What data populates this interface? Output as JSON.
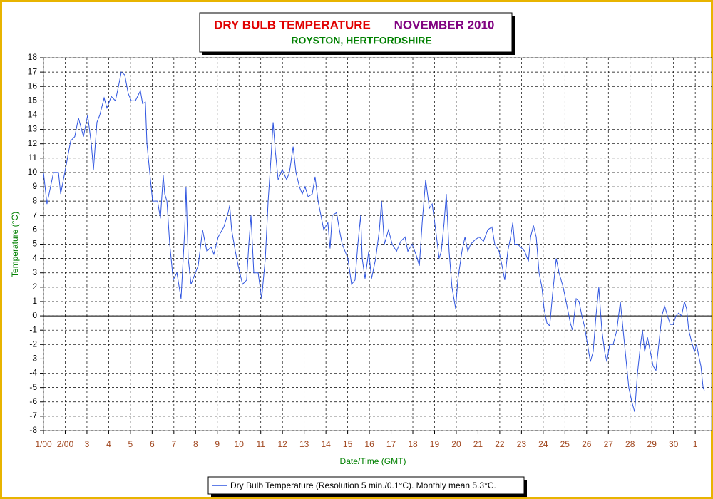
{
  "chart_data": {
    "type": "line",
    "title": "DRY BULB TEMPERATURE",
    "title_date": "NOVEMBER 2010",
    "subtitle": "ROYSTON, HERTFORDSHIRE",
    "y_label": "Temperature (°C)",
    "x_label": "Date/Time (GMT)",
    "ylim": [
      -8,
      18
    ],
    "yticks": [
      -8,
      -7,
      -6,
      -5,
      -4,
      -3,
      -2,
      -1,
      0,
      1,
      2,
      3,
      4,
      5,
      6,
      7,
      8,
      9,
      10,
      11,
      12,
      13,
      14,
      15,
      16,
      17,
      18
    ],
    "xlim": [
      0,
      30.75
    ],
    "xticks": [
      {
        "value": 0,
        "label": "1/00"
      },
      {
        "value": 1,
        "label": "2/00"
      },
      {
        "value": 2,
        "label": "3"
      },
      {
        "value": 3,
        "label": "4"
      },
      {
        "value": 4,
        "label": "5"
      },
      {
        "value": 5,
        "label": "6"
      },
      {
        "value": 6,
        "label": "7"
      },
      {
        "value": 7,
        "label": "8"
      },
      {
        "value": 8,
        "label": "9"
      },
      {
        "value": 9,
        "label": "10"
      },
      {
        "value": 10,
        "label": "11"
      },
      {
        "value": 11,
        "label": "12"
      },
      {
        "value": 12,
        "label": "13"
      },
      {
        "value": 13,
        "label": "14"
      },
      {
        "value": 14,
        "label": "15"
      },
      {
        "value": 15,
        "label": "16"
      },
      {
        "value": 16,
        "label": "17"
      },
      {
        "value": 17,
        "label": "18"
      },
      {
        "value": 18,
        "label": "19"
      },
      {
        "value": 19,
        "label": "20"
      },
      {
        "value": 20,
        "label": "21"
      },
      {
        "value": 21,
        "label": "22"
      },
      {
        "value": 22,
        "label": "23"
      },
      {
        "value": 23,
        "label": "24"
      },
      {
        "value": 24,
        "label": "25"
      },
      {
        "value": 25,
        "label": "26"
      },
      {
        "value": 26,
        "label": "27"
      },
      {
        "value": 27,
        "label": "28"
      },
      {
        "value": 28,
        "label": "29"
      },
      {
        "value": 29,
        "label": "30"
      },
      {
        "value": 30,
        "label": "1"
      }
    ],
    "grid": true,
    "x": [
      0,
      0.16,
      0.46,
      0.69,
      0.79,
      0.98,
      1.25,
      1.44,
      1.61,
      1.84,
      2.03,
      2.2,
      2.3,
      2.46,
      2.59,
      2.79,
      2.92,
      3.12,
      3.31,
      3.45,
      3.58,
      3.74,
      3.9,
      4.04,
      4.23,
      4.46,
      4.56,
      4.69,
      4.76,
      4.89,
      5.02,
      5.25,
      5.38,
      5.51,
      5.58,
      5.68,
      5.81,
      5.97,
      6.14,
      6.33,
      6.5,
      6.56,
      6.66,
      6.79,
      6.99,
      7.12,
      7.32,
      7.52,
      7.71,
      7.84,
      8.04,
      8.3,
      8.5,
      8.57,
      8.66,
      8.83,
      8.96,
      9.16,
      9.35,
      9.45,
      9.55,
      9.68,
      9.88,
      10.04,
      10.21,
      10.34,
      10.47,
      10.57,
      10.67,
      10.8,
      10.99,
      11.19,
      11.32,
      11.49,
      11.62,
      11.78,
      11.91,
      12.04,
      12.18,
      12.37,
      12.5,
      12.64,
      12.77,
      12.9,
      13.09,
      13.19,
      13.29,
      13.49,
      13.62,
      13.75,
      14.01,
      14.18,
      14.34,
      14.47,
      14.6,
      14.67,
      14.8,
      14.97,
      15.1,
      15.29,
      15.46,
      15.56,
      15.69,
      15.88,
      16.05,
      16.25,
      16.44,
      16.64,
      16.77,
      16.97,
      17.16,
      17.3,
      17.43,
      17.59,
      17.76,
      17.89,
      18.05,
      18.21,
      18.31,
      18.44,
      18.54,
      18.67,
      18.8,
      18.97,
      19.07,
      19.26,
      19.4,
      19.53,
      19.66,
      19.86,
      20.05,
      20.25,
      20.45,
      20.64,
      20.77,
      20.97,
      21.17,
      21.23,
      21.37,
      21.5,
      21.6,
      21.69,
      21.82,
      21.96,
      22.15,
      22.32,
      22.42,
      22.55,
      22.68,
      22.81,
      22.94,
      23.04,
      23.17,
      23.3,
      23.43,
      23.6,
      23.73,
      23.92,
      24.12,
      24.25,
      24.35,
      24.52,
      24.65,
      24.78,
      24.91,
      25.04,
      25.17,
      25.3,
      25.43,
      25.56,
      25.7,
      25.83,
      25.93,
      26.06,
      26.22,
      26.39,
      26.55,
      26.68,
      26.81,
      26.94,
      27.08,
      27.21,
      27.34,
      27.48,
      27.57,
      27.67,
      27.8,
      27.93,
      28.06,
      28.19,
      28.32,
      28.46,
      28.59,
      28.72,
      28.85,
      28.98,
      29.11,
      29.24,
      29.37,
      29.5,
      29.6,
      29.7,
      29.83,
      29.96,
      30.06,
      30.16,
      30.26,
      30.36,
      30.42
    ],
    "series": [
      {
        "name": "Dry Bulb Temperature (Resolution 5 min./0.1°C). Monthly mean 5.3°C.",
        "color": "#2f55e0",
        "values": [
          10,
          7.8,
          10,
          10,
          8.5,
          10,
          12.2,
          12.5,
          13.8,
          12.5,
          14,
          12,
          10.2,
          13.5,
          14,
          15.2,
          14.5,
          15.3,
          15,
          16,
          17,
          16.8,
          15.5,
          15,
          15,
          15.7,
          14.8,
          14.9,
          12,
          10,
          8,
          8,
          6.8,
          9.8,
          8.5,
          8,
          5,
          2.5,
          3,
          1.2,
          6,
          9,
          4,
          2.2,
          3,
          3.5,
          6,
          4.5,
          4.8,
          4.3,
          5.5,
          6.2,
          7.2,
          7.7,
          6,
          4.5,
          3.5,
          2.2,
          2.5,
          5,
          7,
          3,
          3,
          1.2,
          4,
          8,
          11,
          13.5,
          11.5,
          9.5,
          10.2,
          9.5,
          10,
          11.8,
          10,
          9,
          8.5,
          9,
          8.3,
          8.5,
          9.7,
          8,
          7,
          6,
          6.5,
          4.7,
          7,
          7.2,
          6,
          5,
          4,
          2.2,
          2.5,
          5,
          7,
          4,
          2.6,
          4.5,
          2.6,
          4,
          6,
          8,
          5,
          6,
          5,
          4.5,
          5.2,
          5.5,
          4.5,
          5,
          4.2,
          3.5,
          6.5,
          9.5,
          7.5,
          7.8,
          6,
          4,
          4.5,
          6.5,
          8.5,
          4.5,
          2,
          0.5,
          2.5,
          4.5,
          5.5,
          4.5,
          5,
          5.3,
          5.5,
          5.2,
          6,
          6.2,
          5,
          4.5,
          3,
          2.5,
          4.5,
          5.5,
          6.5,
          5,
          5,
          4.8,
          4.5,
          3.8,
          5.5,
          6.3,
          5.5,
          3,
          2,
          0.5,
          -0.5,
          -0.7,
          1.5,
          4,
          3,
          2,
          0.5,
          -0.5,
          -1,
          1.2,
          1,
          0,
          -0.8,
          -2,
          -3.2,
          -2.5,
          0,
          2,
          -1,
          -2.5,
          -3.2,
          -2,
          -2,
          -1,
          1,
          -1,
          -3,
          -5,
          -6,
          -6.7,
          -4,
          -2,
          -1,
          -2.5,
          -1.5,
          -2.5,
          -3.5,
          -3.8,
          -2,
          0,
          0.7,
          0,
          -0.6,
          -0.6,
          0,
          0.2,
          0,
          1,
          0.5,
          -1,
          -1.8,
          -2.5,
          -2,
          -2.8,
          -3.5,
          -5,
          -5.2
        ]
      }
    ]
  }
}
